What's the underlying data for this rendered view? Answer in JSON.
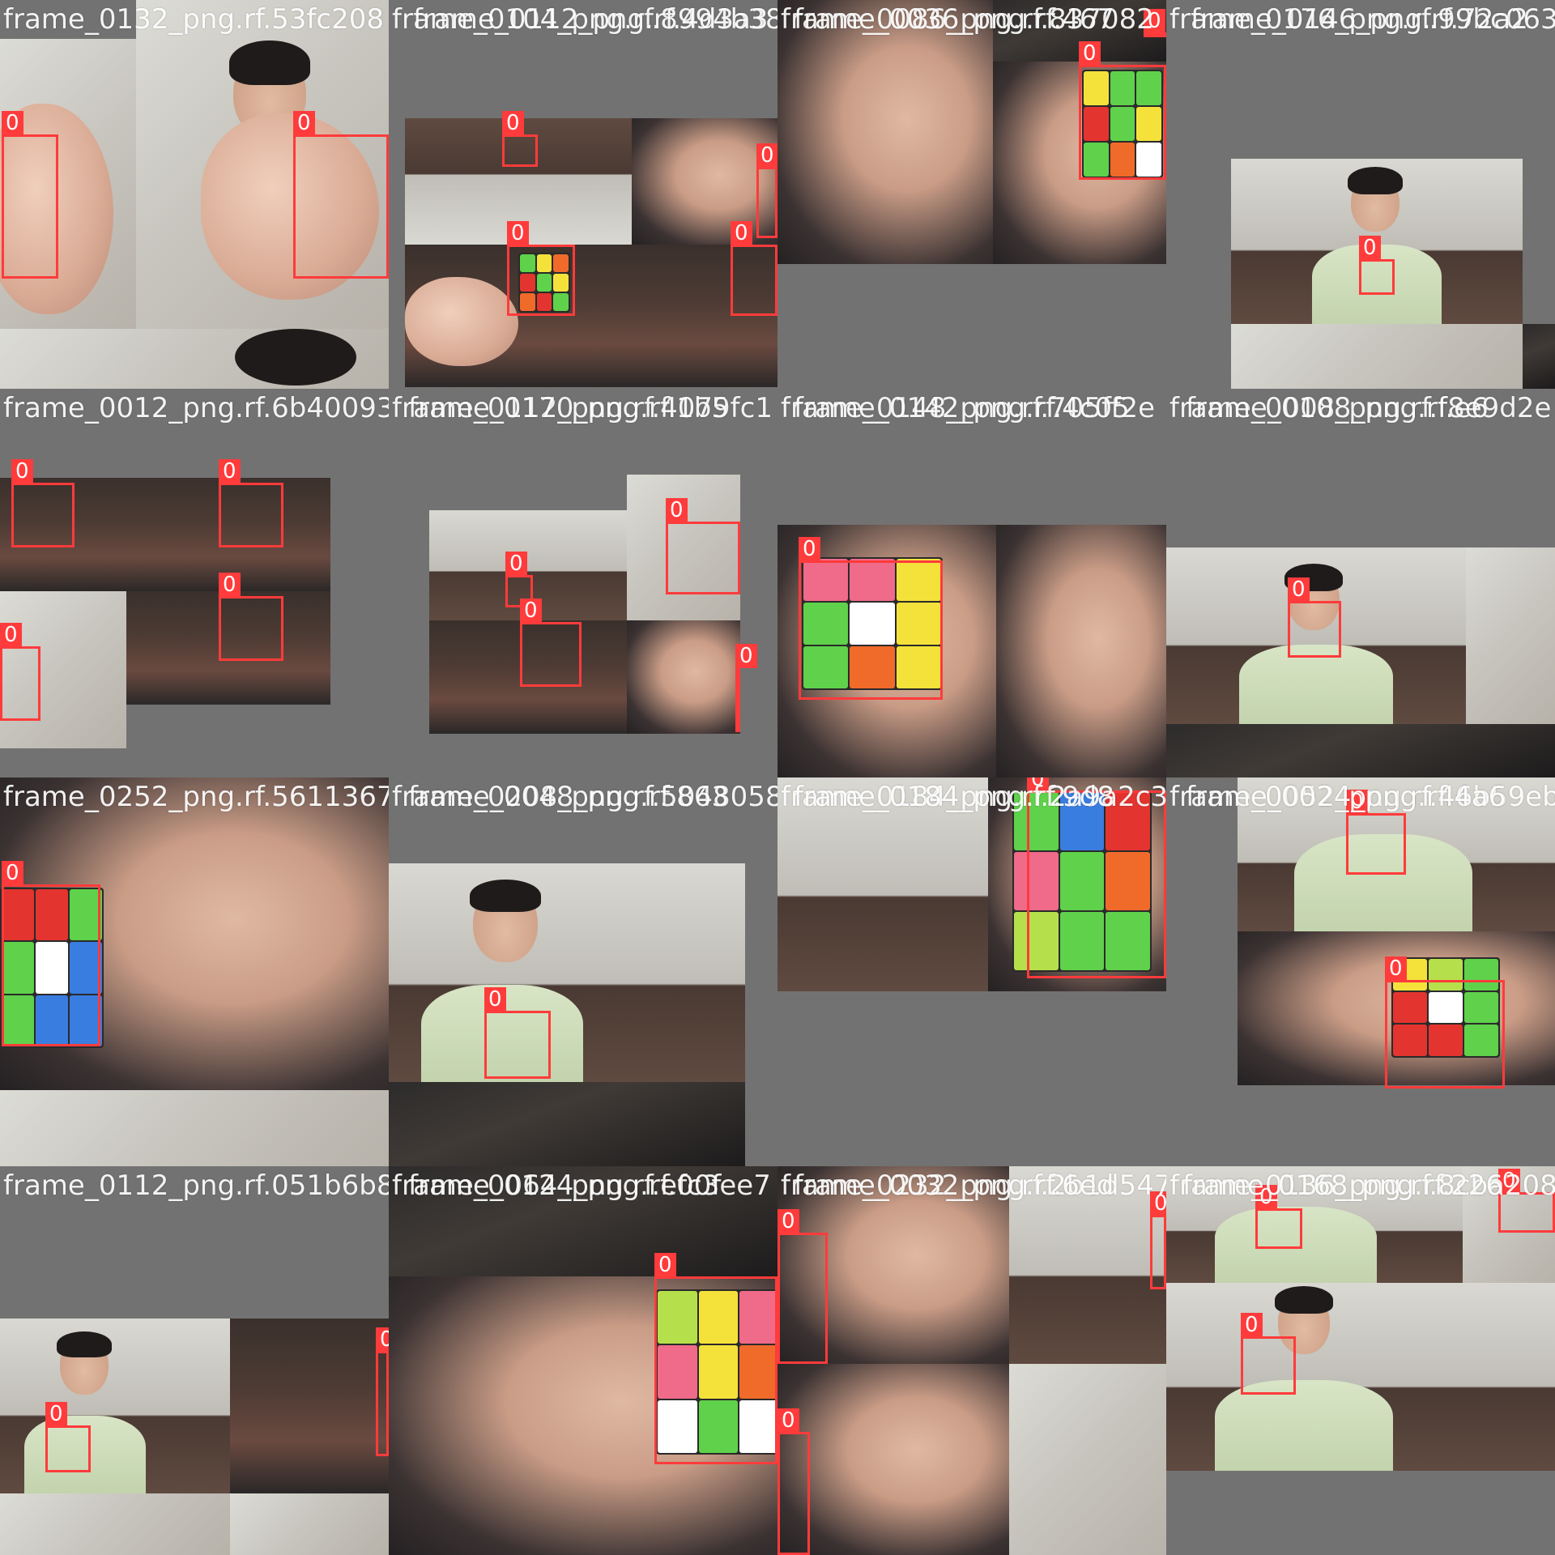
{
  "box_label": "0",
  "tiles": [
    "frame_0132_png.rf.53fc208",
    "frame_0104_png.rf.8994b38",
    "frame_0086_png.rf.837082",
    "frame_0176_png.rf.99bc063",
    "frame_0012_png.rf.6b40093",
    "frame_0112_png.rf.4079fc1",
    "frame_0148_png.rf.705ff2e",
    "frame_0008_png.rf.f8e9d2e",
    "frame_0252_png.rf.5611367",
    "frame_0208_png.rf.5048058",
    "frame_0184_png.rf.2a9a2c3",
    "frame_0052_png.rf.46b59eb",
    "frame_0112_png.rf.051b6b8",
    "frame_0064_png.rf.efc3ee7",
    "frame_0232_png.rf.2b1d547",
    "frame_0136_png.rf.8cba208"
  ],
  "overlay_captions": [
    "",
    "frame_0112_png.rf.4d3a3",
    "frame_0036_png.rf.467",
    "frame_0146_png.rf.72a2",
    "",
    "frame_0170_png.rf.1b5",
    "frame_0142_png.rf.4c05",
    "frame_0108_png.rf.e6",
    "",
    "frame_0048_png.rf.863",
    "frame_0184_png.rf.9d8",
    "frame_0024_png.rf.4a6",
    "",
    "frame_0124_png.rf.00f",
    "frame_0032_png.rf.6ed",
    "frame_0168_png.rf.226"
  ]
}
